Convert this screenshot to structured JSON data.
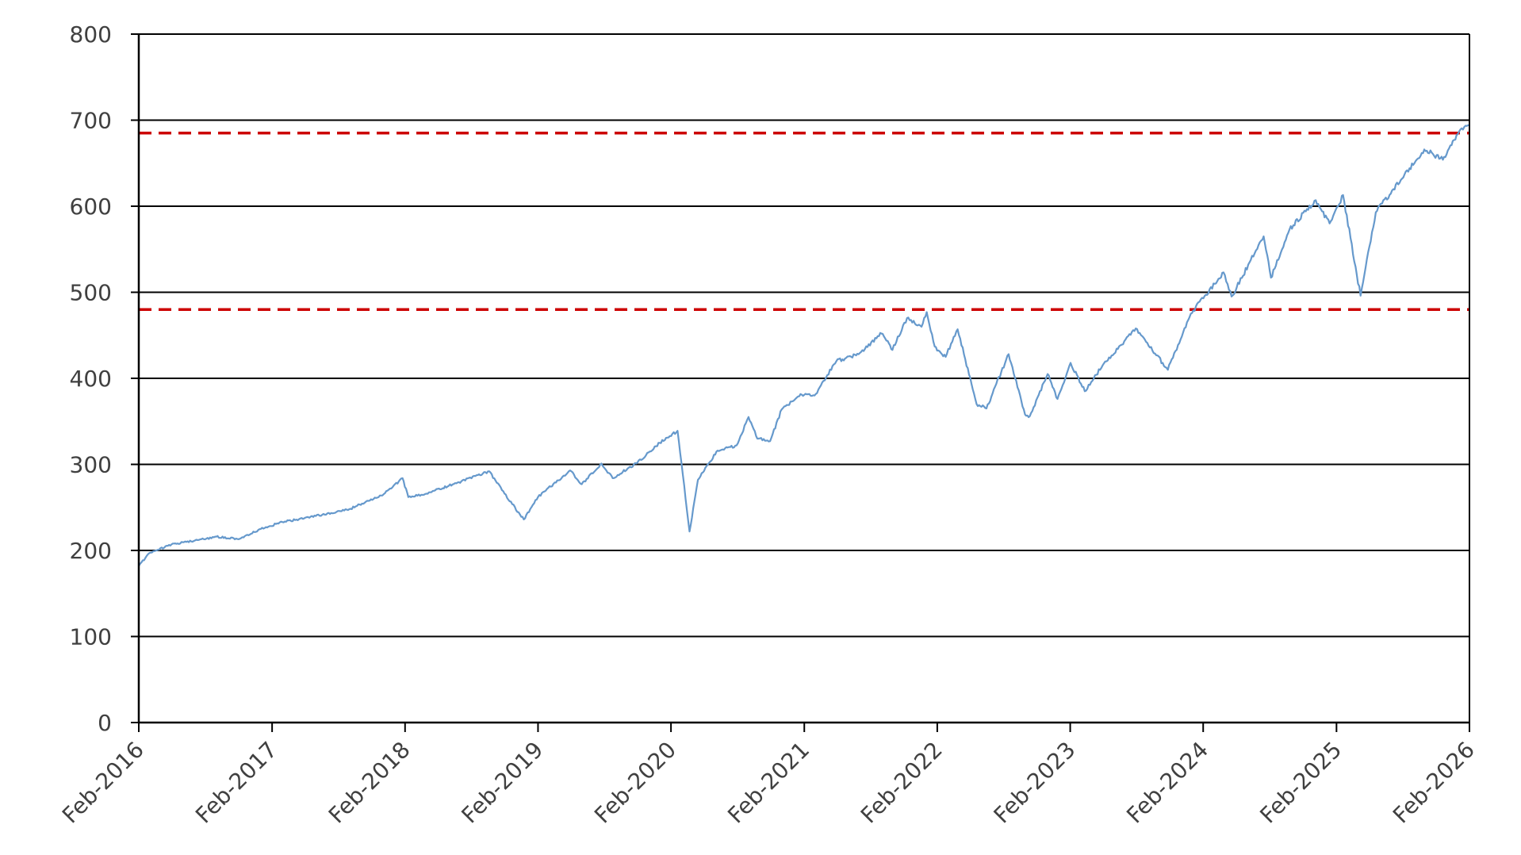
{
  "chart_data": {
    "type": "line",
    "title": "",
    "xlabel": "",
    "ylabel": "",
    "ylim": [
      0,
      800
    ],
    "yticks": [
      0,
      100,
      200,
      300,
      400,
      500,
      600,
      700,
      800
    ],
    "ytick_labels": [
      "0",
      "100",
      "200",
      "300",
      "400",
      "500",
      "600",
      "700",
      "800"
    ],
    "xlim": [
      "2016-02-01",
      "2026-02-01"
    ],
    "xticks": [
      "2016-02-01",
      "2017-02-01",
      "2018-02-01",
      "2019-02-01",
      "2020-02-01",
      "2021-02-01",
      "2022-02-01",
      "2023-02-01",
      "2024-02-01",
      "2025-02-01",
      "2026-02-01"
    ],
    "xtick_labels": [
      "Feb-2016",
      "Feb-2017",
      "Feb-2018",
      "Feb-2019",
      "Feb-2020",
      "Feb-2021",
      "Feb-2022",
      "Feb-2023",
      "Feb-2024",
      "Feb-2025",
      "Feb-2026"
    ],
    "grid": true,
    "series": [
      {
        "color": "#6699cc",
        "points": [
          [
            "2016-02-01",
            182
          ],
          [
            "2016-03-01",
            197
          ],
          [
            "2016-05-01",
            207
          ],
          [
            "2016-07-01",
            211
          ],
          [
            "2016-09-01",
            216
          ],
          [
            "2016-11-01",
            213
          ],
          [
            "2017-01-01",
            225
          ],
          [
            "2017-03-01",
            233
          ],
          [
            "2017-06-01",
            240
          ],
          [
            "2017-09-01",
            248
          ],
          [
            "2017-12-01",
            264
          ],
          [
            "2018-01-25",
            284
          ],
          [
            "2018-02-10",
            262
          ],
          [
            "2018-04-01",
            266
          ],
          [
            "2018-06-01",
            275
          ],
          [
            "2018-09-20",
            292
          ],
          [
            "2018-10-25",
            270
          ],
          [
            "2018-12-24",
            236
          ],
          [
            "2019-02-01",
            262
          ],
          [
            "2019-04-30",
            293
          ],
          [
            "2019-06-01",
            277
          ],
          [
            "2019-07-25",
            301
          ],
          [
            "2019-08-25",
            284
          ],
          [
            "2019-11-01",
            302
          ],
          [
            "2020-01-01",
            325
          ],
          [
            "2020-02-19",
            339
          ],
          [
            "2020-03-23",
            222
          ],
          [
            "2020-04-15",
            282
          ],
          [
            "2020-06-08",
            316
          ],
          [
            "2020-07-30",
            322
          ],
          [
            "2020-09-01",
            355
          ],
          [
            "2020-09-25",
            330
          ],
          [
            "2020-10-30",
            327
          ],
          [
            "2020-12-01",
            364
          ],
          [
            "2021-01-25",
            381
          ],
          [
            "2021-03-01",
            380
          ],
          [
            "2021-04-30",
            420
          ],
          [
            "2021-06-30",
            428
          ],
          [
            "2021-09-01",
            452
          ],
          [
            "2021-10-01",
            433
          ],
          [
            "2021-11-10",
            470
          ],
          [
            "2021-12-20",
            460
          ],
          [
            "2022-01-03",
            477
          ],
          [
            "2022-01-25",
            437
          ],
          [
            "2022-02-24",
            425
          ],
          [
            "2022-03-29",
            457
          ],
          [
            "2022-05-20",
            370
          ],
          [
            "2022-06-16",
            365
          ],
          [
            "2022-08-16",
            428
          ],
          [
            "2022-09-30",
            358
          ],
          [
            "2022-10-13",
            356
          ],
          [
            "2022-12-01",
            405
          ],
          [
            "2022-12-28",
            376
          ],
          [
            "2023-02-02",
            418
          ],
          [
            "2023-03-13",
            385
          ],
          [
            "2023-05-01",
            415
          ],
          [
            "2023-07-31",
            458
          ],
          [
            "2023-10-27",
            410
          ],
          [
            "2023-12-29",
            475
          ],
          [
            "2024-03-28",
            523
          ],
          [
            "2024-04-19",
            495
          ],
          [
            "2024-07-16",
            565
          ],
          [
            "2024-08-05",
            517
          ],
          [
            "2024-09-25",
            573
          ],
          [
            "2024-12-06",
            607
          ],
          [
            "2025-01-13",
            580
          ],
          [
            "2025-02-19",
            613
          ],
          [
            "2025-04-08",
            496
          ],
          [
            "2025-05-20",
            593
          ],
          [
            "2025-07-31",
            632
          ],
          [
            "2025-09-30",
            666
          ],
          [
            "2025-11-20",
            654
          ],
          [
            "2025-12-31",
            684
          ],
          [
            "2026-02-01",
            694
          ]
        ]
      }
    ],
    "reference_lines": [
      {
        "y": 685,
        "color": "#cc0000",
        "style": "dashed"
      },
      {
        "y": 480,
        "color": "#cc0000",
        "style": "dashed"
      }
    ]
  }
}
